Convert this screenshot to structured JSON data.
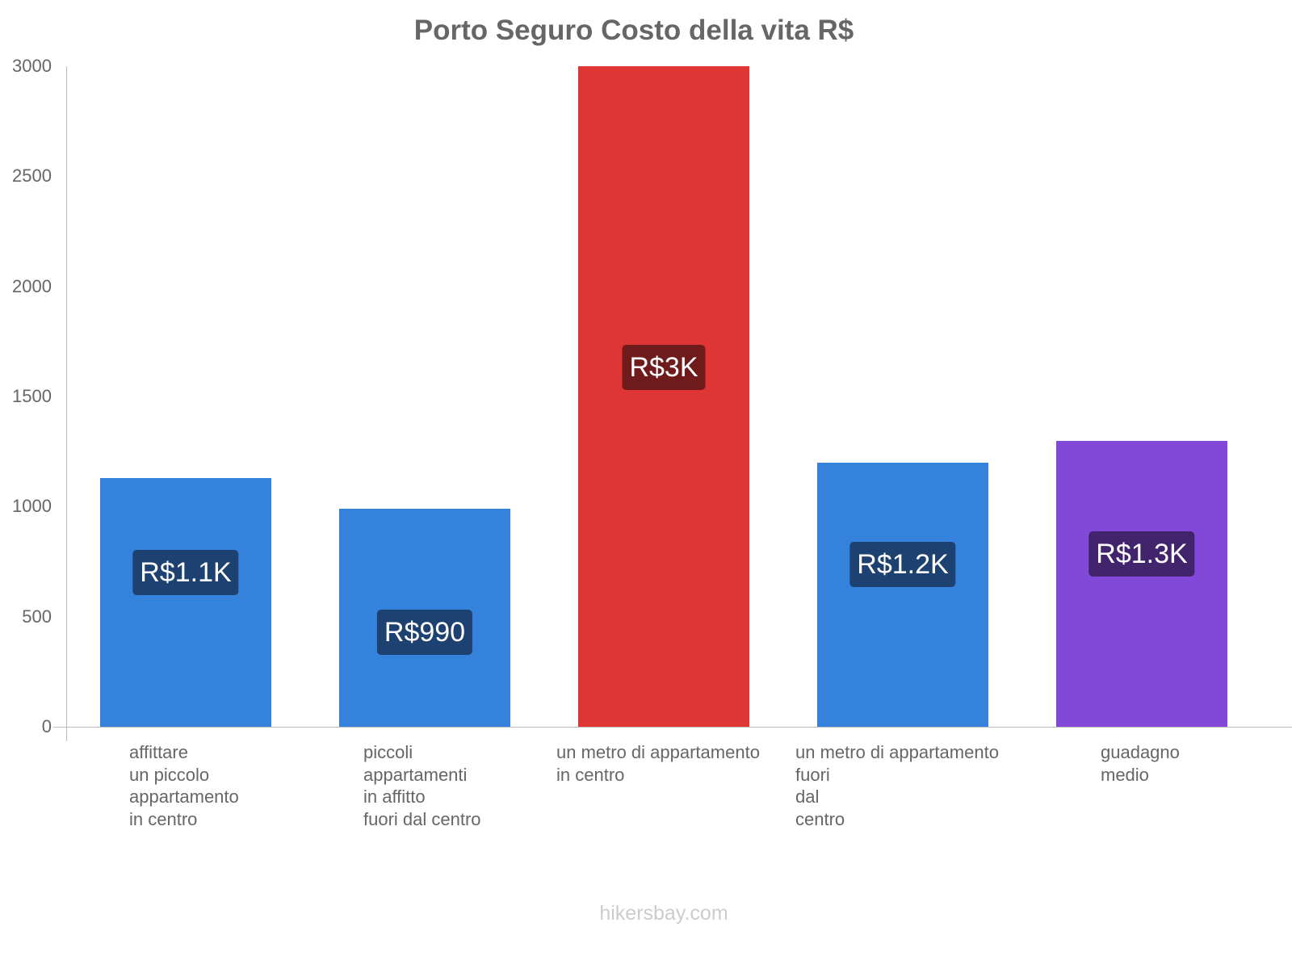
{
  "title": "Porto Seguro Costo della vita R$",
  "watermark": "hikersbay.com",
  "y_ticks": [
    "3000",
    "2500",
    "2000",
    "1500",
    "1000",
    "500",
    "0"
  ],
  "bars": [
    {
      "label_lines": [
        "affittare",
        "un piccolo",
        "appartamento",
        "in centro"
      ],
      "value": 1130,
      "value_label": "R$1.1K",
      "color": "#3582dc",
      "label_bg": "#1d4170"
    },
    {
      "label_lines": [
        "piccoli",
        "appartamenti",
        "in affitto",
        "fuori dal centro"
      ],
      "value": 990,
      "value_label": "R$990",
      "color": "#3582dc",
      "label_bg": "#1d4170"
    },
    {
      "label_lines": [
        "un metro di appartamento",
        "in centro"
      ],
      "value": 3000,
      "value_label": "R$3K",
      "color": "#e03535",
      "label_bg": "#701b1b"
    },
    {
      "label_lines": [
        "un metro di appartamento",
        "fuori",
        "dal",
        "centro"
      ],
      "value": 1200,
      "value_label": "R$1.2K",
      "color": "#3582dc",
      "label_bg": "#1d4170"
    },
    {
      "label_lines": [
        "guadagno",
        "medio"
      ],
      "value": 1300,
      "value_label": "R$1.3K",
      "color": "#8249d8",
      "label_bg": "#41246c"
    }
  ],
  "chart_data": {
    "type": "bar",
    "title": "Porto Seguro Costo della vita R$",
    "categories": [
      "affittare un piccolo appartamento in centro",
      "piccoli appartamenti in affitto fuori dal centro",
      "un metro di appartamento in centro",
      "un metro di appartamento fuori dal centro",
      "guadagno medio"
    ],
    "values": [
      1130,
      990,
      3000,
      1200,
      1300
    ],
    "data_labels": [
      "R$1.1K",
      "R$990",
      "R$3K",
      "R$1.2K",
      "R$1.3K"
    ],
    "colors": [
      "#3582dc",
      "#3582dc",
      "#e03535",
      "#3582dc",
      "#8249d8"
    ],
    "xlabel": "",
    "ylabel": "",
    "ylim": [
      0,
      3000
    ],
    "yticks": [
      0,
      500,
      1000,
      1500,
      2000,
      2500,
      3000
    ],
    "grid": false,
    "legend": null
  }
}
